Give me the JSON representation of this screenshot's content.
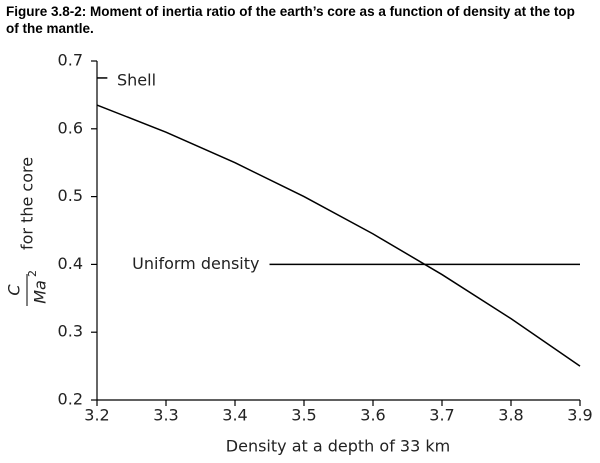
{
  "chart_data": {
    "type": "line",
    "title": "Figure 3.8-2: Moment of inertia ratio of the earth’s core as a function of density at the top of the mantle.",
    "xlabel": "Density at a depth of 33 km",
    "ylabel": {
      "numerator": "C",
      "denominator": "Ma",
      "superscript": "2",
      "text": "for the core"
    },
    "xlim": [
      3.2,
      3.9
    ],
    "ylim": [
      0.2,
      0.7
    ],
    "xticks": [
      3.2,
      3.3,
      3.4,
      3.5,
      3.6,
      3.7,
      3.8,
      3.9
    ],
    "yticks": [
      0.2,
      0.3,
      0.4,
      0.5,
      0.6,
      0.7
    ],
    "series": [
      {
        "color": "#000000",
        "x": [
          3.2,
          3.3,
          3.4,
          3.5,
          3.6,
          3.7,
          3.8,
          3.9
        ],
        "values": [
          0.635,
          0.595,
          0.55,
          0.5,
          0.445,
          0.385,
          0.32,
          0.25
        ]
      },
      {
        "name": "Uniform density",
        "color": "#000000",
        "x": [
          3.45,
          3.9
        ],
        "values": [
          0.4,
          0.4
        ]
      },
      {
        "name": "Shell",
        "color": "#000000",
        "x": [
          3.2,
          3.215
        ],
        "values": [
          0.675,
          0.675
        ]
      }
    ]
  }
}
